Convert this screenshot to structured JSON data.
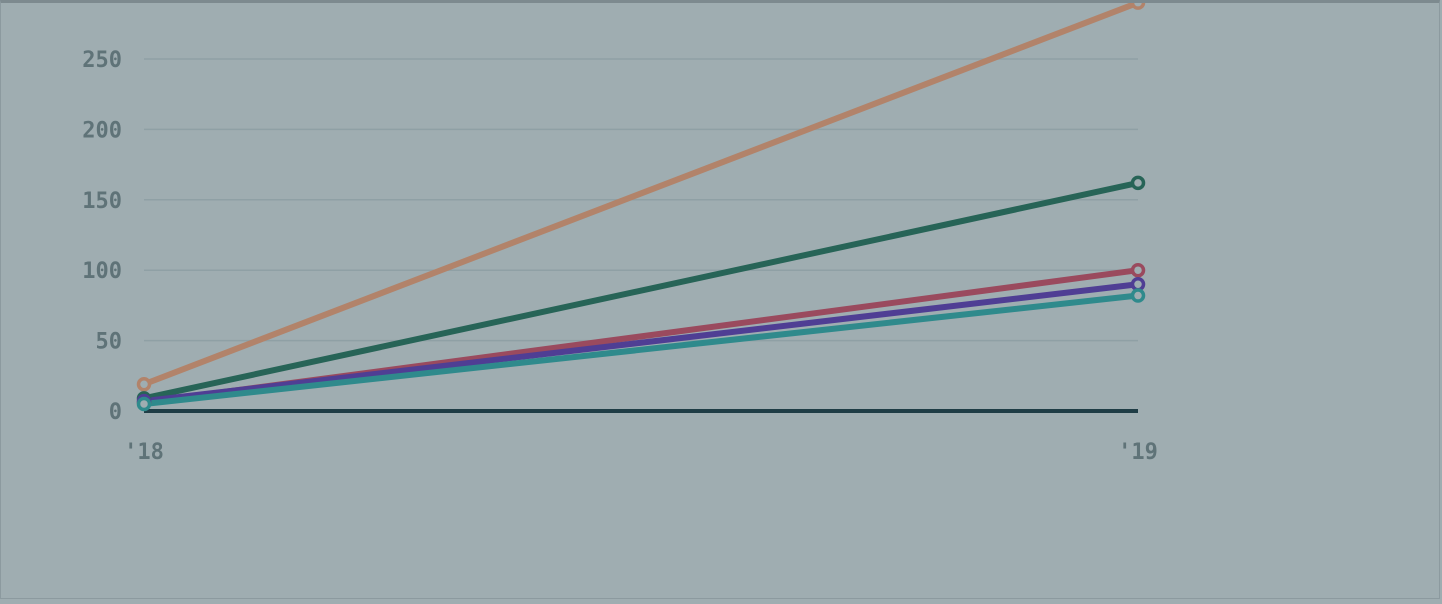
{
  "chart_data": {
    "type": "line",
    "title": "",
    "xlabel": "",
    "ylabel": "",
    "x": [
      "'18",
      "'19"
    ],
    "ylim": [
      0,
      290
    ],
    "yticks": [
      0,
      50,
      100,
      150,
      200,
      250
    ],
    "ytick_labels": [
      "0",
      "50",
      "100",
      "150",
      "200",
      "250"
    ],
    "grid": true,
    "legend": "none",
    "series": [
      {
        "color": "#b2836a",
        "values": [
          19,
          290
        ]
      },
      {
        "color": "#276457",
        "values": [
          9,
          162
        ]
      },
      {
        "color": "#9a4a5e",
        "values": [
          6,
          100
        ]
      },
      {
        "color": "#4f3e94",
        "values": [
          7,
          90
        ]
      },
      {
        "color": "#2f8a8c",
        "values": [
          5,
          82
        ]
      }
    ],
    "colors": {
      "background": "#9fadb1",
      "grid": "#8fa0a5",
      "baseline": "#1f3d46",
      "tick_text": "#5f7378"
    }
  }
}
